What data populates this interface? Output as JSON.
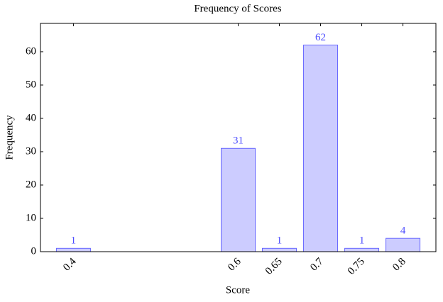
{
  "chart_data": {
    "type": "bar",
    "title": "Frequency of Scores",
    "x_label": "Score",
    "y_label": "Frequency",
    "x": [
      0.4,
      0.6,
      0.65,
      0.7,
      0.75,
      0.8
    ],
    "values": [
      1,
      31,
      1,
      62,
      1,
      4
    ],
    "color": "#ccccff",
    "edge_color": "#6666ff",
    "label_color": "#4d4dff",
    "xlim": [
      0.36,
      0.84
    ],
    "xticks": [
      0.4,
      0.6,
      0.65,
      0.7,
      0.75,
      0.8
    ],
    "ylim": [
      0,
      68.5
    ],
    "yticks": [
      0,
      10,
      20,
      30,
      40,
      50,
      60
    ]
  }
}
